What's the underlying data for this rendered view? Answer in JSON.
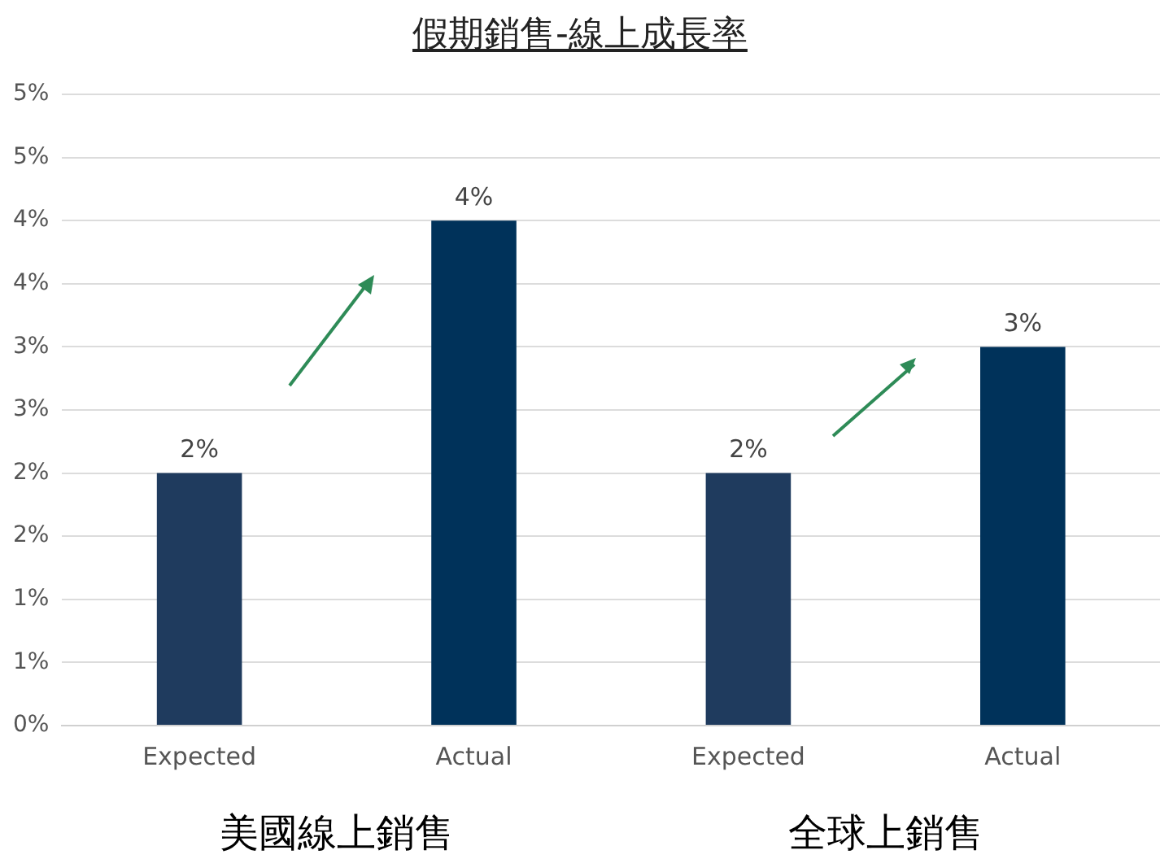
{
  "chart_data": {
    "type": "bar",
    "title": "假期銷售-線上成長率",
    "categories": [
      "Expected",
      "Actual",
      "Expected",
      "Actual"
    ],
    "values": [
      2,
      4,
      2,
      3
    ],
    "colors": [
      "#1f3b5e",
      "#00325a",
      "#1f3b5e",
      "#00325a"
    ],
    "value_labels": [
      "2%",
      "4%",
      "2%",
      "3%"
    ],
    "ylim": [
      0,
      5
    ],
    "yticks": [
      {
        "value": 0,
        "label": "0%"
      },
      {
        "value": 0.5,
        "label": "1%"
      },
      {
        "value": 1,
        "label": "1%"
      },
      {
        "value": 1.5,
        "label": "2%"
      },
      {
        "value": 2,
        "label": "2%"
      },
      {
        "value": 2.5,
        "label": "3%"
      },
      {
        "value": 3,
        "label": "3%"
      },
      {
        "value": 3.5,
        "label": "4%"
      },
      {
        "value": 4,
        "label": "4%"
      },
      {
        "value": 4.5,
        "label": "5%"
      },
      {
        "value": 5,
        "label": "5%"
      }
    ],
    "grid": "y",
    "annotations": [
      "美國線上銷售",
      "全球上銷售"
    ]
  }
}
